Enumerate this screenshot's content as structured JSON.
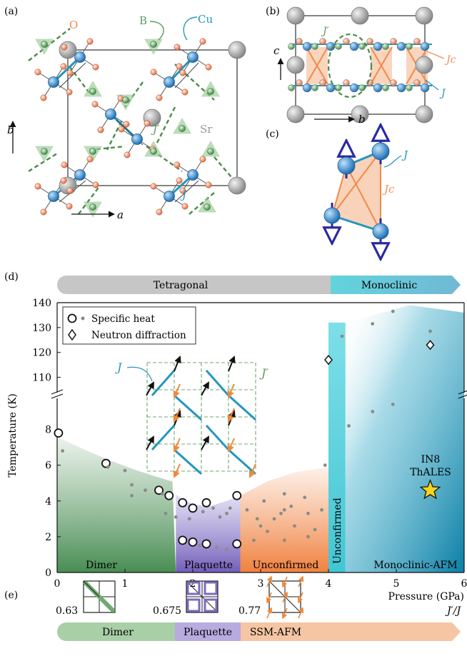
{
  "panels": {
    "a": "(a)",
    "b": "(b)",
    "c": "(c)",
    "d": "(d)",
    "e": "(e)"
  },
  "panel_a": {
    "atom_labels": {
      "o": "O",
      "b": "B",
      "cu": "Cu",
      "sr": "Sr"
    },
    "coupling_labels": {
      "jp": "J′",
      "j": "J"
    },
    "axis_b": "b",
    "axis_a": "a"
  },
  "panel_b": {
    "jp": "J′",
    "jc": "Jc",
    "j": "J",
    "axis_c": "c",
    "axis_b": "b"
  },
  "panel_c": {
    "j": "J",
    "jc": "Jc"
  },
  "phase_bar_top": {
    "left": "Tetragonal",
    "right": "Monoclinic"
  },
  "legend": {
    "specific_heat": "Specific heat",
    "neutron": "Neutron diffraction"
  },
  "inset_labels": {
    "j": "J",
    "jp": "J′"
  },
  "region_labels": {
    "dimer": "Dimer",
    "plaquette": "Plaquette",
    "unconfirmed": "Unconfirmed",
    "unconfirmed_vertical": "Unconfirmed",
    "monoclinic_afm": "Monoclinic-AFM"
  },
  "star_label": [
    "IN8",
    "ThALES"
  ],
  "bottom_bar": {
    "dimer": "Dimer",
    "plaquette": "Plaquette",
    "ssm": "SSM-AFM",
    "ratios": [
      "0.63",
      "0.675",
      "0.77"
    ],
    "axis": "J′/J"
  },
  "colors": {
    "dimer": "#5a9a62",
    "plaquette": "#7e6bbd",
    "unconfirmed": "#f08a4b",
    "monoclinic": "#1a8fb0",
    "cu": "#2f8fd3",
    "oxygen": "#f2a077",
    "boron": "#8cc18a",
    "sr": "#a9a9a9",
    "j": "#2596be",
    "jc": "#f0935a",
    "jp_dash": "#4c8b4c"
  },
  "chart_data": {
    "type": "scatter",
    "title": "",
    "xlabel": "Pressure (GPa)",
    "ylabel": "Temperature (K)",
    "xlim": [
      0,
      6
    ],
    "ylim_lower": [
      0,
      9.5
    ],
    "ylim_upper": [
      105,
      140
    ],
    "x_ticks": [
      0,
      1,
      2,
      3,
      4,
      5,
      6
    ],
    "y_ticks_lower": [
      0,
      2,
      4,
      6,
      8
    ],
    "y_ticks_upper": [
      110,
      120,
      130,
      140
    ],
    "series": [
      {
        "name": "Specific heat",
        "marker": "open-circle",
        "points": [
          [
            0.02,
            7.8
          ],
          [
            0.72,
            6.1
          ],
          [
            1.5,
            4.6
          ],
          [
            1.65,
            4.3
          ],
          [
            1.85,
            3.9
          ],
          [
            2.0,
            3.6
          ],
          [
            2.2,
            3.9
          ],
          [
            2.65,
            4.3
          ],
          [
            1.85,
            1.8
          ],
          [
            2.0,
            1.7
          ],
          [
            2.2,
            1.6
          ],
          [
            2.65,
            1.6
          ]
        ]
      },
      {
        "name": "Specific heat (small)",
        "marker": "dot",
        "points": [
          [
            0.08,
            6.8
          ],
          [
            0.75,
            5.9
          ],
          [
            1.0,
            5.7
          ],
          [
            1.1,
            4.9
          ],
          [
            1.1,
            4.3
          ],
          [
            1.3,
            4.6
          ],
          [
            1.55,
            4.4
          ],
          [
            1.6,
            3.3
          ],
          [
            1.75,
            3.1
          ],
          [
            1.95,
            3.0
          ],
          [
            2.15,
            3.4
          ],
          [
            2.3,
            3.6
          ],
          [
            2.4,
            3.1
          ],
          [
            2.5,
            3.3
          ],
          [
            2.55,
            3.6
          ],
          [
            2.8,
            3.5
          ],
          [
            2.9,
            1.8
          ],
          [
            2.95,
            3.0
          ],
          [
            3.0,
            2.6
          ],
          [
            3.05,
            4.0
          ],
          [
            3.1,
            2.3
          ],
          [
            3.2,
            3.0
          ],
          [
            3.35,
            1.8
          ],
          [
            3.3,
            3.3
          ],
          [
            3.35,
            3.5
          ],
          [
            3.35,
            4.4
          ],
          [
            3.45,
            3.7
          ],
          [
            3.5,
            2.6
          ],
          [
            3.65,
            4.2
          ],
          [
            3.7,
            3.3
          ],
          [
            3.7,
            2.0
          ],
          [
            3.8,
            2.4
          ],
          [
            3.9,
            3.5
          ],
          [
            3.95,
            6.0
          ],
          [
            4.3,
            8.2
          ],
          [
            4.65,
            9.0
          ],
          [
            4.95,
            9.4
          ],
          [
            2.1,
            1.5
          ],
          [
            2.35,
            1.4
          ],
          [
            2.5,
            1.3
          ]
        ]
      },
      {
        "name": "Specific heat (small, upper)",
        "marker": "dot",
        "points": [
          [
            4.2,
            126.5
          ],
          [
            4.65,
            131.5
          ],
          [
            4.95,
            136.5
          ],
          [
            5.5,
            128.5
          ]
        ]
      },
      {
        "name": "Neutron diffraction",
        "marker": "open-diamond",
        "points": [
          [
            4.0,
            117
          ],
          [
            5.5,
            123
          ]
        ]
      },
      {
        "name": "IN8 ThALES",
        "marker": "star",
        "points": [
          [
            5.5,
            4.6
          ]
        ]
      }
    ],
    "regions": [
      {
        "label": "Dimer",
        "x": [
          0,
          1.75
        ]
      },
      {
        "label": "Plaquette",
        "x": [
          1.75,
          2.7
        ]
      },
      {
        "label": "Unconfirmed",
        "x": [
          2.7,
          4.0
        ]
      },
      {
        "label": "Unconfirmed",
        "x": [
          4.0,
          4.25
        ]
      },
      {
        "label": "Monoclinic-AFM",
        "x": [
          4.25,
          6.0
        ]
      }
    ]
  }
}
